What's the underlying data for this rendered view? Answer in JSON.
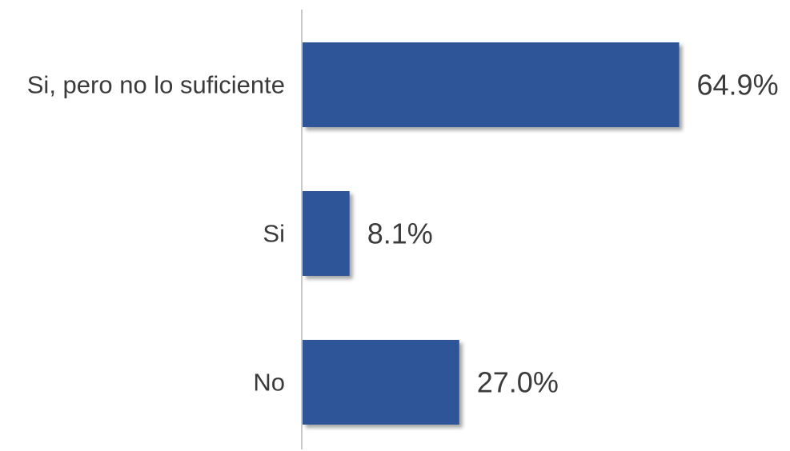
{
  "chart_data": {
    "type": "bar",
    "orientation": "horizontal",
    "categories": [
      "Si, pero no lo suficiente",
      "Si",
      "No"
    ],
    "values": [
      64.9,
      8.1,
      27.0
    ],
    "value_labels": [
      "64.9%",
      "8.1%",
      "27.0%"
    ],
    "unit": "%",
    "xlim": [
      0,
      100
    ],
    "grid": false,
    "legend": "none",
    "colors": {
      "bar": "#2f5597",
      "axis": "#c8c8c8",
      "text": "#3b3b3b"
    }
  }
}
